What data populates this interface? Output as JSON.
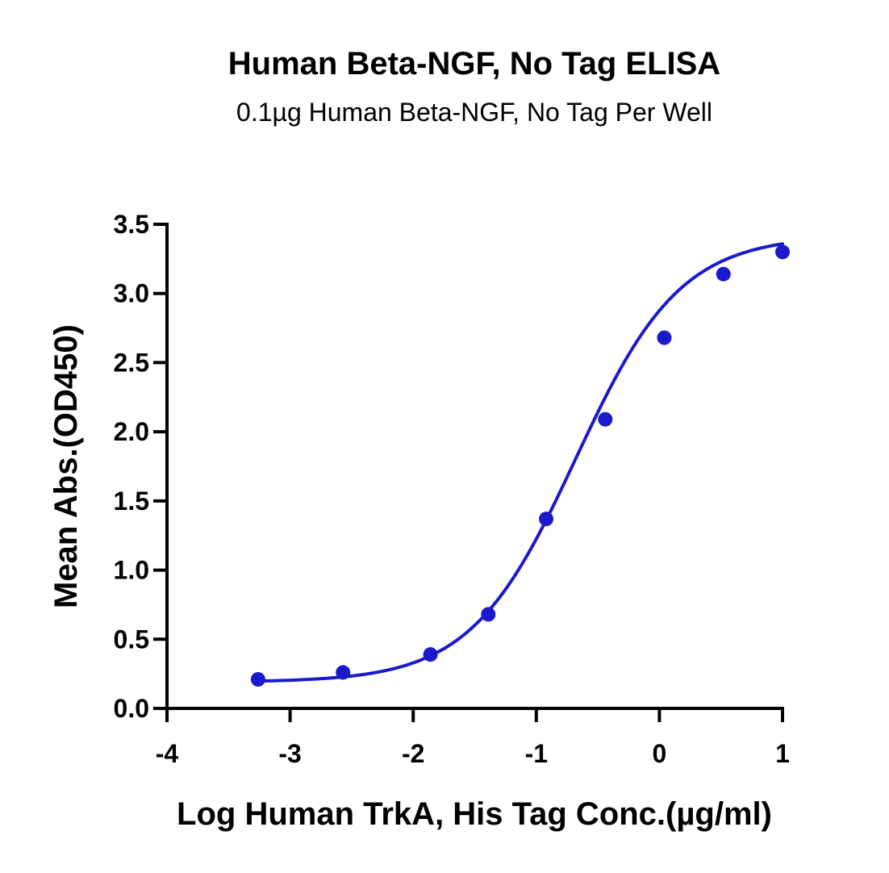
{
  "chart_data": {
    "type": "scatter",
    "title": "Human Beta-NGF, No Tag ELISA",
    "subtitle": "0.1µg Human Beta-NGF, No Tag Per Well",
    "xlabel": "Log Human TrkA, His Tag Conc.(µg/ml)",
    "ylabel": "Mean Abs.(OD450)",
    "xlim": [
      -4,
      1
    ],
    "ylim": [
      0,
      3.5
    ],
    "x_ticks": [
      -4,
      -3,
      -2,
      -1,
      0,
      1
    ],
    "x_tick_labels": [
      "-4",
      "-3",
      "-2",
      "-1",
      "0",
      "1"
    ],
    "y_ticks": [
      0,
      0.5,
      1,
      1.5,
      2,
      2.5,
      3,
      3.5
    ],
    "y_tick_labels": [
      "0.0",
      "0.5",
      "1.0",
      "1.5",
      "2.0",
      "2.5",
      "3.0",
      "3.5"
    ],
    "grid": false,
    "legend": "none",
    "series": [
      {
        "x": [
          -3.26,
          -2.57,
          -1.86,
          -1.39,
          -0.92,
          -0.44,
          0.04,
          0.52,
          1.0
        ],
        "y": [
          0.21,
          0.26,
          0.39,
          0.68,
          1.37,
          2.09,
          2.68,
          3.14,
          3.3
        ],
        "color": "#1a1acc",
        "fit": "4PL"
      }
    ]
  }
}
